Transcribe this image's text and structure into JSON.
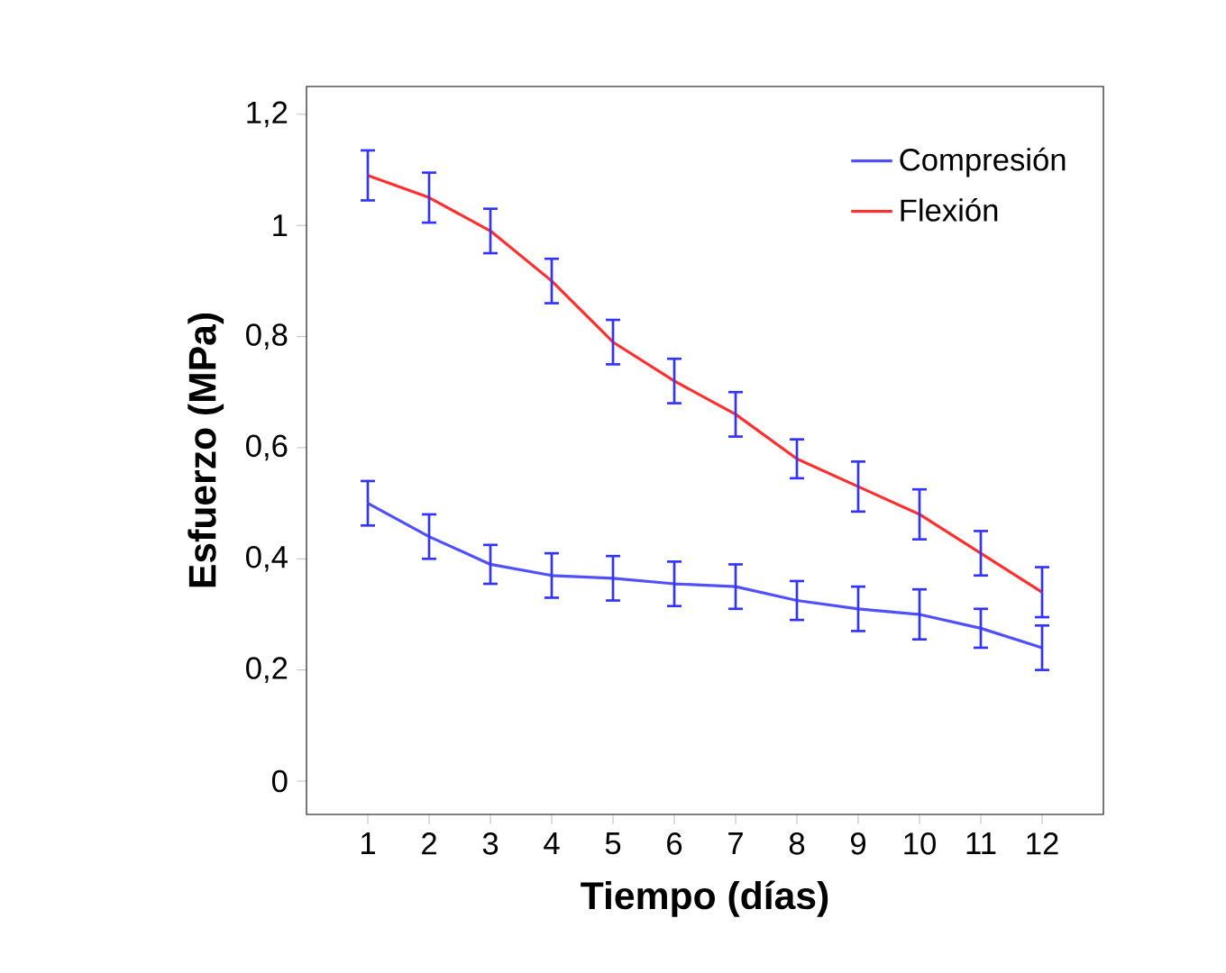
{
  "chart_data": {
    "type": "line",
    "xlabel": "Tiempo  (días)",
    "ylabel": "Esfuerzo (MPa)",
    "x": [
      1,
      2,
      3,
      4,
      5,
      6,
      7,
      8,
      9,
      10,
      11,
      12
    ],
    "series": [
      {
        "name": "Compresión",
        "color": "#5050ff",
        "values": [
          0.5,
          0.44,
          0.39,
          0.37,
          0.365,
          0.355,
          0.35,
          0.325,
          0.31,
          0.3,
          0.275,
          0.24
        ],
        "errors": [
          0.04,
          0.04,
          0.035,
          0.04,
          0.04,
          0.04,
          0.04,
          0.035,
          0.04,
          0.045,
          0.035,
          0.04
        ]
      },
      {
        "name": "Flexión",
        "color": "#ff3030",
        "values": [
          1.09,
          1.05,
          0.99,
          0.9,
          0.79,
          0.72,
          0.66,
          0.58,
          0.53,
          0.48,
          0.41,
          0.34
        ],
        "errors": [
          0.045,
          0.045,
          0.04,
          0.04,
          0.04,
          0.04,
          0.04,
          0.035,
          0.045,
          0.045,
          0.04,
          0.045
        ]
      }
    ],
    "xlim": [
      0,
      13
    ],
    "ylim": [
      -0.06,
      1.25
    ],
    "xticks": [
      1,
      2,
      3,
      4,
      5,
      6,
      7,
      8,
      9,
      10,
      11,
      12
    ],
    "yticks": [
      0,
      {
        "value": 0.2,
        "label": "0,2"
      },
      {
        "value": 0.4,
        "label": "0,4"
      },
      {
        "value": 0.6,
        "label": "0,6"
      },
      {
        "value": 0.8,
        "label": "0,8"
      },
      1,
      {
        "value": 1.2,
        "label": "1,2"
      }
    ],
    "legend": "top right",
    "grid": false
  }
}
